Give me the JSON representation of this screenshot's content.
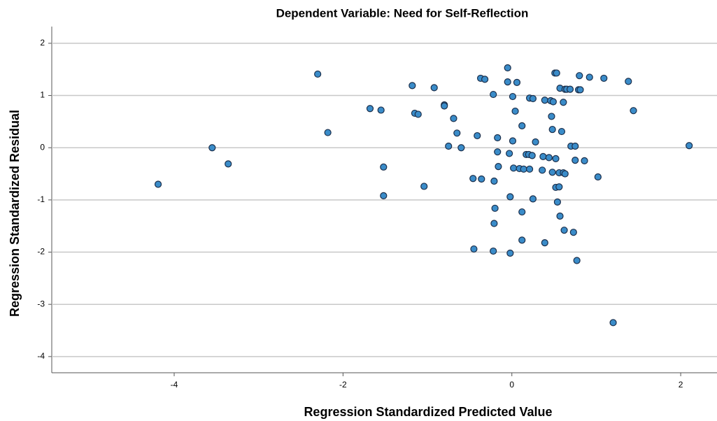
{
  "chart_data": {
    "type": "scatter",
    "title": "Dependent Variable: Need for Self-Reflection",
    "x_label": "Regression Standardized Predicted Value",
    "y_label": "Regression Standardized Residual",
    "xlim": [
      -5.45,
      2.43
    ],
    "ylim": [
      -4.31,
      2.32
    ],
    "xticks": [
      -4,
      -2,
      0,
      2
    ],
    "yticks": [
      -4,
      -3,
      -2,
      -1,
      0,
      1,
      2
    ],
    "grid": true,
    "color": "#3a8cc9",
    "edge_color": "#1b2e4a",
    "x": [
      -4.19,
      -3.55,
      -3.36,
      -2.3,
      -2.18,
      -1.68,
      -1.55,
      -1.52,
      -1.52,
      -1.18,
      -1.15,
      -1.11,
      -1.04,
      -0.92,
      -0.8,
      -0.8,
      -0.75,
      -0.69,
      -0.65,
      -0.6,
      -0.46,
      -0.45,
      -0.41,
      -0.37,
      -0.32,
      -0.36,
      -0.22,
      -0.21,
      -0.2,
      -0.21,
      -0.22,
      -0.17,
      -0.17,
      -0.16,
      -0.05,
      -0.05,
      -0.03,
      -0.02,
      -0.02,
      0.01,
      0.01,
      0.02,
      0.04,
      0.06,
      0.09,
      0.12,
      0.12,
      0.12,
      0.14,
      0.17,
      0.2,
      0.21,
      0.21,
      0.25,
      0.25,
      0.28,
      0.24,
      0.36,
      0.37,
      0.39,
      0.39,
      0.44,
      0.46,
      0.47,
      0.48,
      0.48,
      0.51,
      0.53,
      0.49,
      0.52,
      0.52,
      0.54,
      0.56,
      0.56,
      0.57,
      0.57,
      0.59,
      0.61,
      0.61,
      0.63,
      0.62,
      0.63,
      0.65,
      0.69,
      0.7,
      0.75,
      0.75,
      0.73,
      0.77,
      0.79,
      0.81,
      0.8,
      0.86,
      0.92,
      1.02,
      1.09,
      1.2,
      1.38,
      1.44,
      2.1
    ],
    "values": [
      -0.7,
      0.0,
      -0.31,
      1.41,
      0.29,
      0.75,
      0.72,
      -0.37,
      -0.92,
      1.19,
      0.66,
      0.64,
      -0.74,
      1.15,
      0.82,
      0.8,
      0.03,
      0.56,
      0.28,
      0.0,
      -0.59,
      -1.94,
      0.23,
      1.33,
      1.31,
      -0.6,
      1.02,
      -0.64,
      -1.16,
      -1.45,
      -1.98,
      0.19,
      -0.08,
      -0.36,
      1.53,
      1.26,
      -0.11,
      -0.94,
      -2.02,
      0.98,
      0.13,
      -0.39,
      0.7,
      1.25,
      -0.4,
      0.42,
      -1.23,
      -1.77,
      -0.41,
      -0.13,
      -0.13,
      -0.41,
      0.95,
      -0.98,
      0.94,
      0.11,
      -0.15,
      -0.43,
      -0.17,
      0.91,
      -1.82,
      -0.19,
      0.9,
      0.6,
      0.35,
      -0.47,
      1.43,
      1.43,
      0.88,
      -0.76,
      -0.21,
      -1.04,
      -0.75,
      -0.48,
      -1.31,
      1.14,
      0.31,
      0.87,
      -0.48,
      -0.5,
      -1.58,
      1.12,
      1.12,
      1.12,
      0.03,
      0.03,
      -0.24,
      -1.62,
      -2.16,
      1.11,
      1.11,
      1.38,
      -0.25,
      1.35,
      -0.56,
      1.33,
      -3.35,
      1.27,
      0.71,
      0.04
    ]
  }
}
